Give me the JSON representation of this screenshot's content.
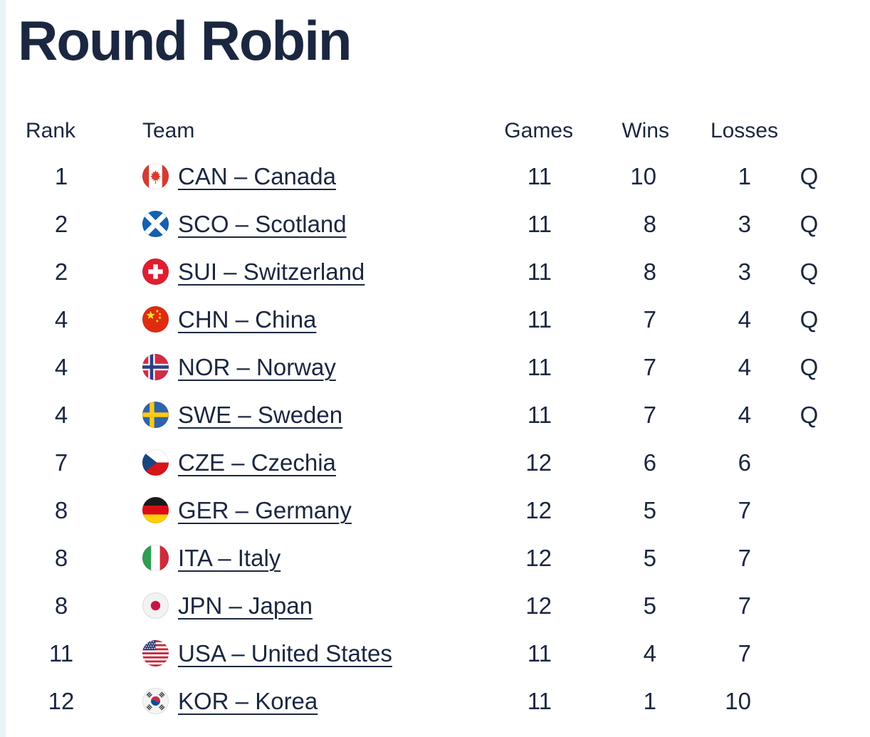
{
  "title": "Round Robin",
  "colors": {
    "text": "#1b2740",
    "link": "#1b2740",
    "left_strip": "#e8f4f8"
  },
  "table": {
    "headers": {
      "rank": "Rank",
      "team": "Team",
      "games": "Games",
      "wins": "Wins",
      "losses": "Losses",
      "qualified": ""
    },
    "rows": [
      {
        "rank": "1",
        "noc": "CAN",
        "flag_icon": "canada-flag-icon",
        "team_label": "CAN – Canada",
        "games": "11",
        "wins": "10",
        "losses": "1",
        "qualified": "Q"
      },
      {
        "rank": "2",
        "noc": "SCO",
        "flag_icon": "scotland-flag-icon",
        "team_label": "SCO – Scotland",
        "games": "11",
        "wins": "8",
        "losses": "3",
        "qualified": "Q"
      },
      {
        "rank": "2",
        "noc": "SUI",
        "flag_icon": "switzerland-flag-icon",
        "team_label": "SUI – Switzerland",
        "games": "11",
        "wins": "8",
        "losses": "3",
        "qualified": "Q"
      },
      {
        "rank": "4",
        "noc": "CHN",
        "flag_icon": "china-flag-icon",
        "team_label": "CHN – China",
        "games": "11",
        "wins": "7",
        "losses": "4",
        "qualified": "Q"
      },
      {
        "rank": "4",
        "noc": "NOR",
        "flag_icon": "norway-flag-icon",
        "team_label": "NOR – Norway",
        "games": "11",
        "wins": "7",
        "losses": "4",
        "qualified": "Q"
      },
      {
        "rank": "4",
        "noc": "SWE",
        "flag_icon": "sweden-flag-icon",
        "team_label": "SWE – Sweden",
        "games": "11",
        "wins": "7",
        "losses": "4",
        "qualified": "Q"
      },
      {
        "rank": "7",
        "noc": "CZE",
        "flag_icon": "czechia-flag-icon",
        "team_label": "CZE – Czechia",
        "games": "12",
        "wins": "6",
        "losses": "6",
        "qualified": ""
      },
      {
        "rank": "8",
        "noc": "GER",
        "flag_icon": "germany-flag-icon",
        "team_label": "GER – Germany",
        "games": "12",
        "wins": "5",
        "losses": "7",
        "qualified": ""
      },
      {
        "rank": "8",
        "noc": "ITA",
        "flag_icon": "italy-flag-icon",
        "team_label": "ITA – Italy",
        "games": "12",
        "wins": "5",
        "losses": "7",
        "qualified": ""
      },
      {
        "rank": "8",
        "noc": "JPN",
        "flag_icon": "japan-flag-icon",
        "team_label": "JPN – Japan",
        "games": "12",
        "wins": "5",
        "losses": "7",
        "qualified": ""
      },
      {
        "rank": "11",
        "noc": "USA",
        "flag_icon": "usa-flag-icon",
        "team_label": "USA – United States",
        "games": "11",
        "wins": "4",
        "losses": "7",
        "qualified": ""
      },
      {
        "rank": "12",
        "noc": "KOR",
        "flag_icon": "korea-flag-icon",
        "team_label": "KOR – Korea",
        "games": "11",
        "wins": "1",
        "losses": "10",
        "qualified": ""
      }
    ]
  }
}
